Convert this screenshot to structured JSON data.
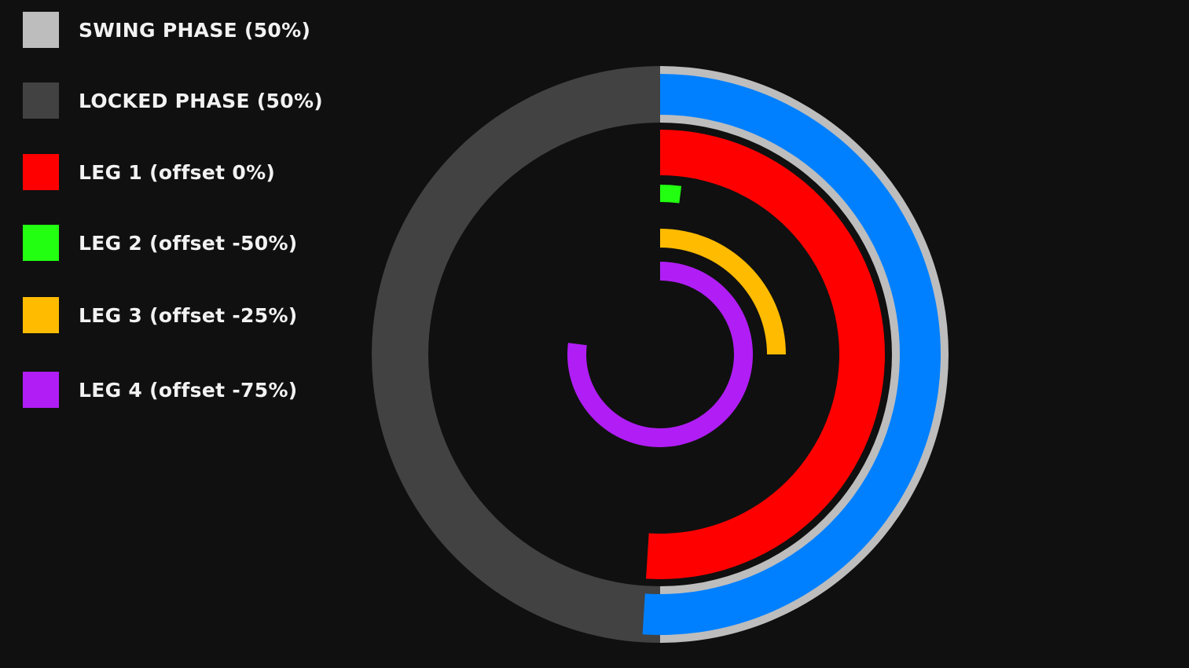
{
  "legend": [
    {
      "key": "swing",
      "label": "SWING PHASE (50%)",
      "color": "#bdbdbd"
    },
    {
      "key": "locked",
      "label": "LOCKED PHASE (50%)",
      "color": "#424242"
    },
    {
      "key": "leg1",
      "label": "LEG 1 (offset 0%)",
      "color": "#ff0000"
    },
    {
      "key": "leg2",
      "label": "LEG 2 (offset -50%)",
      "color": "#22ff11"
    },
    {
      "key": "leg3",
      "label": "LEG 3 (offset -25%)",
      "color": "#ffbb00"
    },
    {
      "key": "leg4",
      "label": "LEG 4 (offset -75%)",
      "color": "#b01ef5"
    }
  ],
  "phase_ring": {
    "swing_color": "#bdbdbd",
    "locked_color": "#424242",
    "progress_color": "#0080ff",
    "swing_fraction": 0.5,
    "locked_fraction": 0.5,
    "progress_fraction": 0.51
  },
  "legs": [
    {
      "name": "leg-1",
      "color": "#ff0000",
      "offset_percent": 0,
      "arc_fraction": 0.51
    },
    {
      "name": "leg-2",
      "color": "#22ff11",
      "offset_percent": -50,
      "arc_fraction": 0.02
    },
    {
      "name": "leg-3",
      "color": "#ffbb00",
      "offset_percent": -25,
      "arc_fraction": 0.25
    },
    {
      "name": "leg-4",
      "color": "#b01ef5",
      "offset_percent": -75,
      "arc_fraction": 0.77
    }
  ]
}
